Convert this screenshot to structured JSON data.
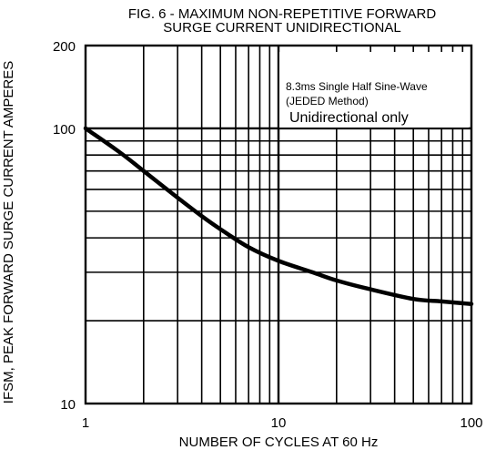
{
  "chart_data": {
    "type": "line",
    "title": "FIG. 6 - MAXIMUM NON-REPETITIVE FORWARD",
    "subtitle": "SURGE CURRENT UNIDIRECTIONAL",
    "xlabel": "NUMBER OF CYCLES AT 60 Hz",
    "ylabel": "IFSM, PEAK FORWARD SURGE CURRENT AMPERES",
    "x_scale": "log",
    "y_scale": "log",
    "xlim": [
      1,
      100
    ],
    "ylim": [
      10,
      200
    ],
    "x_ticks": [
      {
        "value": 1,
        "label": "1"
      },
      {
        "value": 10,
        "label": "10"
      },
      {
        "value": 100,
        "label": "100"
      }
    ],
    "y_ticks": [
      {
        "value": 10,
        "label": "10"
      },
      {
        "value": 100,
        "label": "100"
      },
      {
        "value": 200,
        "label": "200"
      }
    ],
    "grid": true,
    "annotations": [
      "8.3ms Single Half Sine-Wave",
      "(JEDED Method)",
      "Unidirectional only"
    ],
    "series": [
      {
        "x": [
          1,
          1.5,
          2,
          3,
          4,
          5,
          7,
          10,
          15,
          20,
          30,
          50,
          70,
          100
        ],
        "values": [
          100,
          82,
          70,
          56,
          48,
          43,
          37,
          33,
          30,
          28,
          26,
          24,
          23.5,
          23
        ]
      }
    ]
  }
}
